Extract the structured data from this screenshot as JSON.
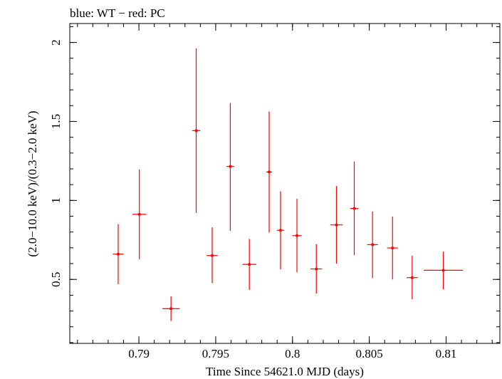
{
  "chart_data": {
    "type": "scatter",
    "title": "blue: WT − red: PC",
    "xlabel": "Time Since 54621.0 MJD (days)",
    "ylabel": "(2.0−10.0 keV)/(0.3−2.0 keV)",
    "xlim": [
      0.7855,
      0.8135
    ],
    "ylim": [
      0.095,
      2.12
    ],
    "x_ticks": [
      {
        "value": 0.79,
        "label": "0.79"
      },
      {
        "value": 0.795,
        "label": "0.795"
      },
      {
        "value": 0.8,
        "label": "0.8"
      },
      {
        "value": 0.805,
        "label": "0.805"
      },
      {
        "value": 0.81,
        "label": "0.81"
      }
    ],
    "y_ticks": [
      {
        "value": 0.5,
        "label": "0.5"
      },
      {
        "value": 1,
        "label": "1"
      },
      {
        "value": 1.5,
        "label": "1.5"
      },
      {
        "value": 2,
        "label": "2"
      }
    ],
    "x_minor_step": 0.001,
    "y_minor_step": 0.1,
    "grid": false,
    "series": [
      {
        "color": "#ff0000",
        "points": [
          {
            "x": 0.78865,
            "xerr": 0.00035,
            "y": 0.66,
            "ylo": 0.47,
            "yhi": 0.85
          },
          {
            "x": 0.79003,
            "xerr": 0.00045,
            "y": 0.912,
            "ylo": 0.628,
            "yhi": 1.195
          },
          {
            "x": 0.79209,
            "xerr": 0.00057,
            "y": 0.315,
            "ylo": 0.237,
            "yhi": 0.393
          },
          {
            "x": 0.79373,
            "xerr": 0.00027,
            "y": 1.442,
            "ylo": 0.921,
            "yhi": 1.963
          },
          {
            "x": 0.79477,
            "xerr": 0.00036,
            "y": 0.651,
            "ylo": 0.476,
            "yhi": 0.83
          },
          {
            "x": 0.79595,
            "xerr": 0.00025,
            "y": 1.215,
            "ylo": 0.808,
            "yhi": 1.617
          },
          {
            "x": 0.79719,
            "xerr": 0.00045,
            "y": 0.595,
            "ylo": 0.434,
            "yhi": 0.756
          },
          {
            "x": 0.79848,
            "xerr": 0.00019,
            "y": 1.18,
            "ylo": 0.797,
            "yhi": 1.563
          },
          {
            "x": 0.79922,
            "xerr": 0.00024,
            "y": 0.811,
            "ylo": 0.564,
            "yhi": 1.058
          },
          {
            "x": 0.80029,
            "xerr": 0.0003,
            "y": 0.777,
            "ylo": 0.545,
            "yhi": 1.01
          },
          {
            "x": 0.80155,
            "xerr": 0.00038,
            "y": 0.566,
            "ylo": 0.41,
            "yhi": 0.723
          },
          {
            "x": 0.80286,
            "xerr": 0.0004,
            "y": 0.845,
            "ylo": 0.6,
            "yhi": 1.091
          },
          {
            "x": 0.80402,
            "xerr": 0.00027,
            "y": 0.949,
            "ylo": 0.653,
            "yhi": 1.246
          },
          {
            "x": 0.80521,
            "xerr": 0.00035,
            "y": 0.72,
            "ylo": 0.508,
            "yhi": 0.93
          },
          {
            "x": 0.80651,
            "xerr": 0.00035,
            "y": 0.699,
            "ylo": 0.5,
            "yhi": 0.898
          },
          {
            "x": 0.80779,
            "xerr": 0.00036,
            "y": 0.511,
            "ylo": 0.374,
            "yhi": 0.65
          },
          {
            "x": 0.80982,
            "xerr": 0.00127,
            "y": 0.558,
            "ylo": 0.437,
            "yhi": 0.676
          }
        ]
      }
    ]
  }
}
